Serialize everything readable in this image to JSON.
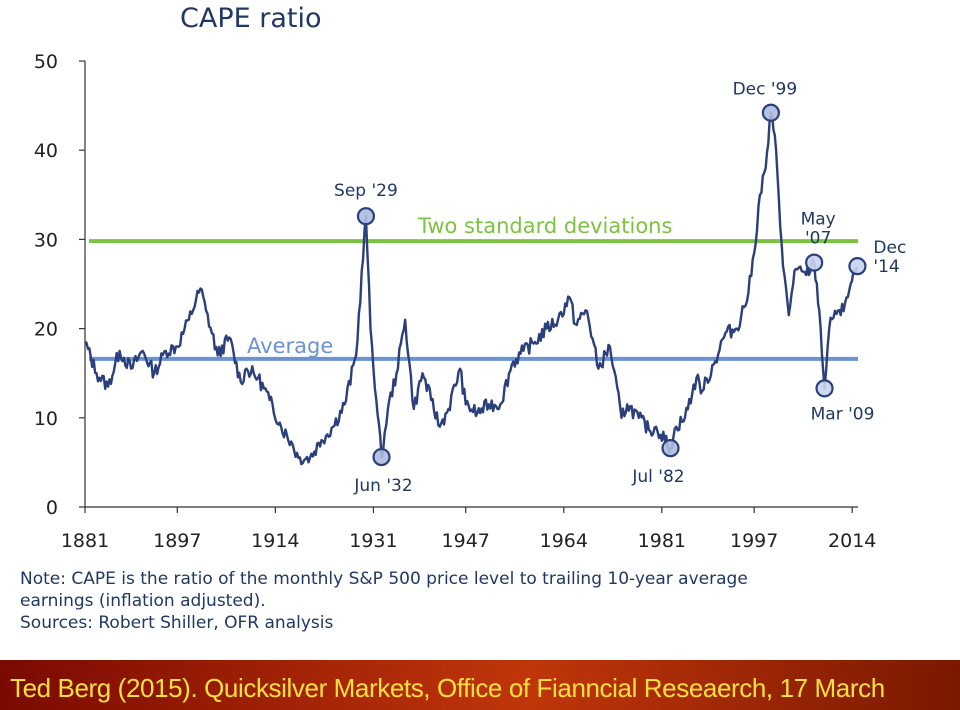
{
  "chart_data": {
    "type": "line",
    "title": "CAPE ratio",
    "xlabel": "",
    "ylabel": "",
    "xlim": [
      1881,
      2015
    ],
    "ylim": [
      0,
      50
    ],
    "x_tick_labels": [
      "1881",
      "1897",
      "1914",
      "1931",
      "1947",
      "1964",
      "1981",
      "1997",
      "2014"
    ],
    "y_tick_labels": [
      "0",
      "10",
      "20",
      "30",
      "40",
      "50"
    ],
    "grid": false,
    "reference_lines": [
      {
        "label": "Two standard deviations",
        "value": 29.8,
        "color": "#7dc242"
      },
      {
        "label": "Average",
        "value": 16.6,
        "color": "#6b93d2"
      }
    ],
    "annotations": [
      {
        "label": "Sep '29",
        "x": 1929.7,
        "y": 32.6,
        "hollow": false
      },
      {
        "label": "Jun '32",
        "x": 1932.4,
        "y": 5.6,
        "hollow": false
      },
      {
        "label": "Jul '82",
        "x": 1982.5,
        "y": 6.6,
        "hollow": false
      },
      {
        "label": "Dec '99",
        "x": 1999.9,
        "y": 44.2,
        "hollow": false
      },
      {
        "label": "May '07",
        "x": 2007.4,
        "y": 27.4,
        "hollow": true
      },
      {
        "label": "Mar '09",
        "x": 2009.2,
        "y": 13.3,
        "hollow": true
      },
      {
        "label": "Dec '14",
        "x": 2014.9,
        "y": 27.0,
        "hollow": true
      }
    ],
    "series": [
      {
        "color": "#2b3f7c",
        "points": [
          [
            1881,
            18.5
          ],
          [
            1883,
            15
          ],
          [
            1885,
            13.5
          ],
          [
            1887,
            17.5
          ],
          [
            1889,
            15.5
          ],
          [
            1891,
            17.5
          ],
          [
            1893,
            15
          ],
          [
            1895,
            17.5
          ],
          [
            1897,
            18
          ],
          [
            1899,
            21
          ],
          [
            1901,
            24.5
          ],
          [
            1902,
            22
          ],
          [
            1904,
            17
          ],
          [
            1906,
            19
          ],
          [
            1908,
            14
          ],
          [
            1909,
            15.5
          ],
          [
            1911,
            14.5
          ],
          [
            1913,
            12
          ],
          [
            1915,
            9
          ],
          [
            1917,
            7
          ],
          [
            1918,
            5.5
          ],
          [
            1920,
            5.5
          ],
          [
            1922,
            7.5
          ],
          [
            1924,
            9
          ],
          [
            1926,
            11.5
          ],
          [
            1928,
            17
          ],
          [
            1929.7,
            32.6
          ],
          [
            1930.5,
            20
          ],
          [
            1931.5,
            12
          ],
          [
            1932.4,
            5.6
          ],
          [
            1933.5,
            11
          ],
          [
            1935,
            15
          ],
          [
            1936.5,
            21
          ],
          [
            1938,
            11
          ],
          [
            1939.5,
            15
          ],
          [
            1941,
            12
          ],
          [
            1942.5,
            9
          ],
          [
            1944,
            11
          ],
          [
            1946,
            15.5
          ],
          [
            1947,
            11.5
          ],
          [
            1949,
            10.5
          ],
          [
            1951,
            11.5
          ],
          [
            1953,
            11.5
          ],
          [
            1955,
            16
          ],
          [
            1957,
            17.5
          ],
          [
            1959,
            18.5
          ],
          [
            1961,
            20
          ],
          [
            1963,
            21
          ],
          [
            1965,
            23.5
          ],
          [
            1966,
            20.5
          ],
          [
            1968,
            22
          ],
          [
            1970,
            15.5
          ],
          [
            1972,
            18
          ],
          [
            1974,
            10
          ],
          [
            1975,
            11.5
          ],
          [
            1977,
            10
          ],
          [
            1979,
            8.5
          ],
          [
            1980,
            9
          ],
          [
            1982.5,
            6.6
          ],
          [
            1983.5,
            9
          ],
          [
            1985,
            10
          ],
          [
            1987,
            14.5
          ],
          [
            1988,
            13
          ],
          [
            1990,
            16
          ],
          [
            1992,
            19.5
          ],
          [
            1994,
            20
          ],
          [
            1996,
            24
          ],
          [
            1997,
            28.5
          ],
          [
            1998,
            35
          ],
          [
            1999,
            38
          ],
          [
            1999.9,
            44.2
          ],
          [
            2000.8,
            40
          ],
          [
            2002,
            27
          ],
          [
            2003,
            21.5
          ],
          [
            2004,
            26.5
          ],
          [
            2006,
            26
          ],
          [
            2007.4,
            27.4
          ],
          [
            2008.3,
            22
          ],
          [
            2009.2,
            13.3
          ],
          [
            2010,
            20
          ],
          [
            2011,
            22
          ],
          [
            2012,
            21.5
          ],
          [
            2013,
            23.5
          ],
          [
            2014.9,
            27
          ]
        ]
      }
    ]
  },
  "notes": {
    "line1": "Note: CAPE is the ratio of the monthly S&P 500 price level to trailing 10-year average",
    "line2": "earnings (inflation adjusted).",
    "line3": "Sources: Robert Shiller, OFR analysis"
  },
  "banner": {
    "text": "Ted Berg (2015). Quicksilver Markets, Office of Fianncial Reseaerch, 17 March"
  }
}
